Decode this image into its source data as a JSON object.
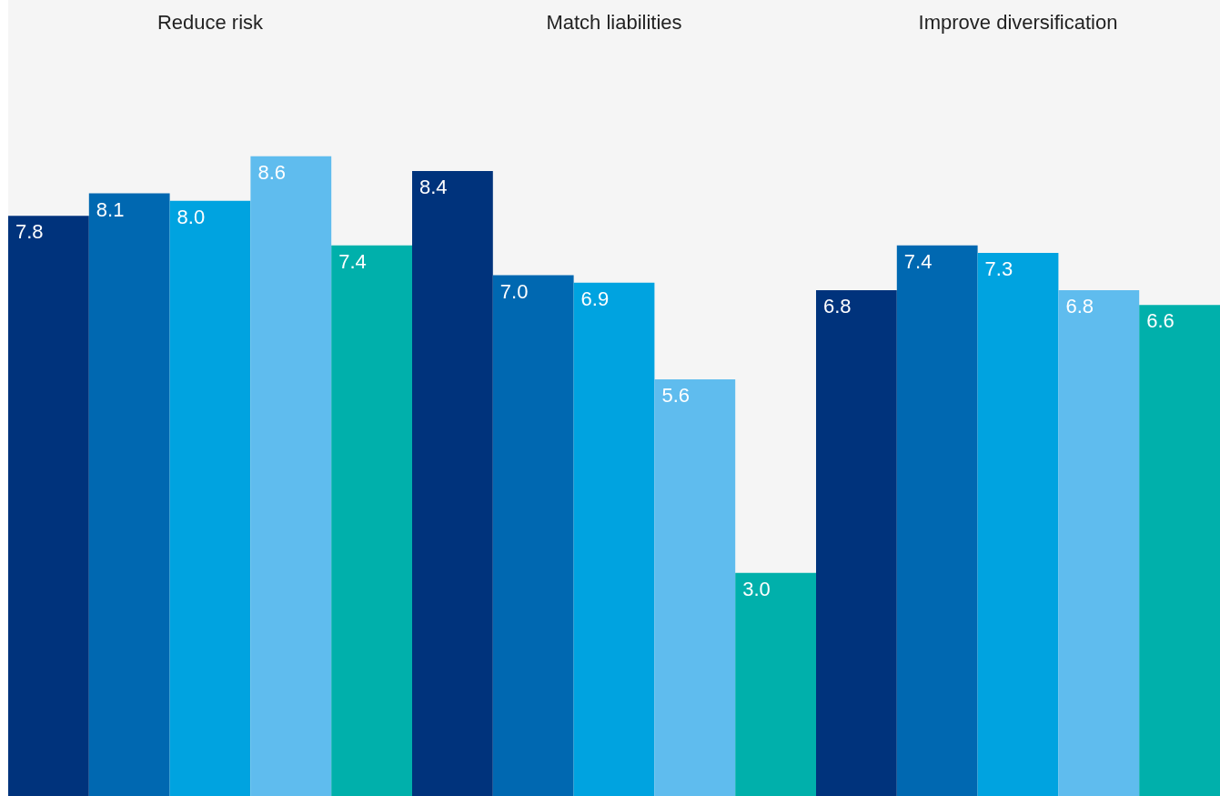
{
  "chart_data": {
    "type": "bar",
    "categories": [
      "Reduce risk",
      "Match liabilities",
      "Improve diversification"
    ],
    "series": [
      {
        "color": "#00337c",
        "values": [
          7.8,
          8.4,
          6.8
        ],
        "value_labels": [
          "7.8",
          "8.4",
          "6.8"
        ]
      },
      {
        "color": "#0068b1",
        "values": [
          8.1,
          7.0,
          7.4
        ],
        "value_labels": [
          "8.1",
          "7.0",
          "7.4"
        ]
      },
      {
        "color": "#00a3e0",
        "values": [
          8.0,
          6.9,
          7.3
        ],
        "value_labels": [
          "8.0",
          "6.9",
          "7.3"
        ]
      },
      {
        "color": "#5fbcee",
        "values": [
          8.6,
          5.6,
          6.8
        ],
        "value_labels": [
          "8.6",
          "5.6",
          "6.8"
        ]
      },
      {
        "color": "#00b0ab",
        "values": [
          7.4,
          3.0,
          6.6
        ],
        "value_labels": [
          "7.4",
          "3.0",
          "6.6"
        ]
      }
    ],
    "ylim": [
      0,
      10.7
    ],
    "tick_labels": "x"
  }
}
